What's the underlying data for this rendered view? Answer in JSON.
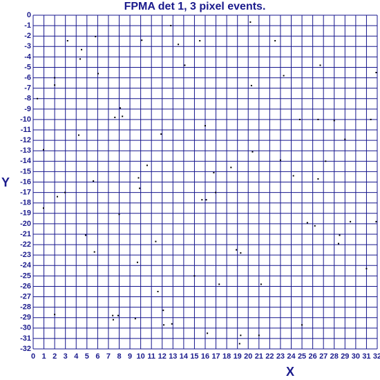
{
  "chart_data": {
    "type": "scatter",
    "title": "FPMA det 1, 3 pixel events.",
    "x_label": "X",
    "y_label": "Y",
    "xlim": [
      0,
      32
    ],
    "ylim": [
      -32,
      0
    ],
    "xticks": [
      0,
      1,
      2,
      3,
      4,
      5,
      6,
      7,
      8,
      9,
      10,
      11,
      12,
      13,
      14,
      15,
      16,
      17,
      18,
      19,
      20,
      21,
      22,
      23,
      24,
      25,
      26,
      27,
      28,
      29,
      30,
      31,
      32
    ],
    "yticks": [
      0,
      -1,
      -2,
      -3,
      -4,
      -5,
      -6,
      -7,
      -8,
      -9,
      -10,
      -11,
      -12,
      -13,
      -14,
      -15,
      -16,
      -17,
      -18,
      -19,
      -20,
      -21,
      -22,
      -23,
      -24,
      -25,
      -26,
      -27,
      -28,
      -29,
      -30,
      -31,
      -32
    ],
    "grid": true,
    "color": "#000000",
    "x": [
      0.39,
      0.96,
      0.96,
      2.0,
      2.0,
      2.0,
      2.25,
      2.96,
      3.2,
      4.24,
      4.37,
      4.5,
      4.88,
      5.6,
      5.7,
      5.8,
      6.04,
      7.6,
      7.4,
      7.45,
      7.9,
      8.1,
      8.0,
      8.3,
      9.5,
      9.7,
      9.8,
      9.9,
      10.1,
      10.6,
      11.4,
      11.6,
      11.9,
      12.1,
      12.15,
      12.8,
      12.9,
      13.5,
      14.1,
      15.0,
      15.5,
      15.7,
      16.1,
      16.0,
      16.2,
      16.8,
      16.97,
      17.3,
      18.4,
      18.9,
      19.3,
      19.3,
      19.2,
      20.2,
      20.3,
      20.4,
      21.2,
      21.0,
      22.5,
      23.0,
      23.3,
      24.2,
      24.8,
      25.0,
      25.5,
      26.2,
      26.5,
      26.5,
      26.7,
      27.2,
      28.0,
      28.4,
      28.5,
      29.0,
      29.5,
      31.0,
      31.4,
      31.9,
      31.9
    ],
    "y": [
      -8.0,
      -12.9,
      -18.5,
      -6.0,
      -6.7,
      -28.7,
      -17.4,
      -17.0,
      -2.45,
      -11.5,
      -4.2,
      -3.3,
      -21.1,
      -15.9,
      -22.7,
      -2.05,
      -5.6,
      -9.8,
      -28.8,
      -29.2,
      -28.8,
      -8.9,
      -19.1,
      -9.7,
      -29.1,
      -23.7,
      -15.6,
      -16.6,
      -2.4,
      -14.4,
      -21.7,
      -26.5,
      -11.4,
      -28.3,
      -29.7,
      -1.0,
      -29.6,
      -2.8,
      -4.8,
      -25.0,
      -2.45,
      -17.7,
      -17.7,
      -10.6,
      -30.5,
      -15.1,
      -17.0,
      -25.8,
      -14.6,
      -22.5,
      -22.8,
      -30.7,
      -31.5,
      -0.66,
      -6.75,
      -13.1,
      -25.8,
      -30.7,
      -2.45,
      -13.9,
      -5.8,
      -15.4,
      -10.0,
      -29.7,
      -19.9,
      -20.2,
      -10.0,
      -15.7,
      -4.8,
      -14.0,
      -10.1,
      -21.9,
      -21.1,
      -11.9,
      -19.8,
      -24.3,
      -10.0,
      -19.8,
      -5.5
    ]
  }
}
